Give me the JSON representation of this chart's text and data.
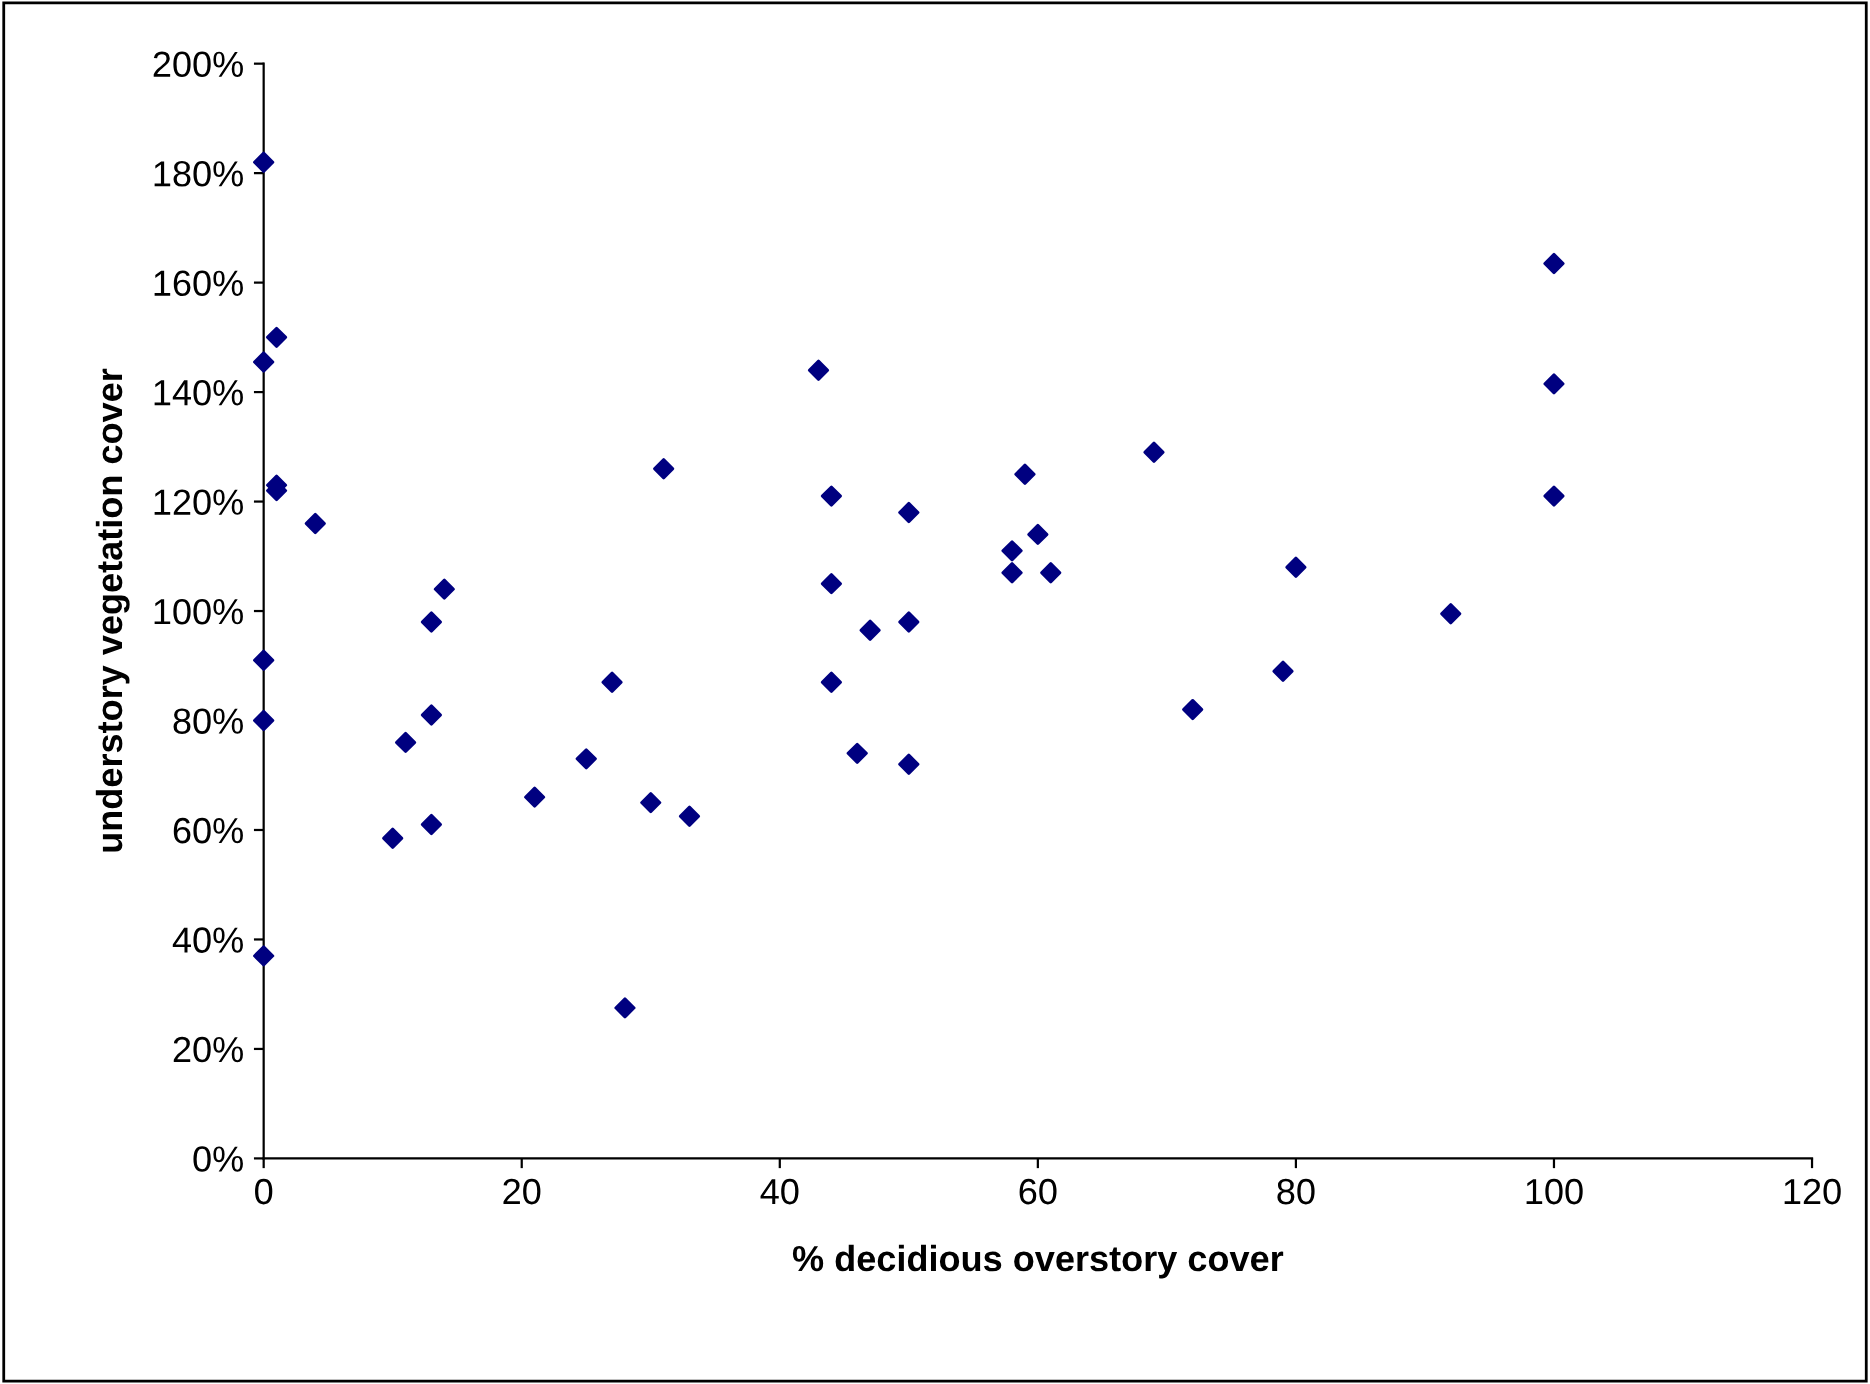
{
  "chart_data": {
    "type": "scatter",
    "xlabel": "% decidious overstory cover",
    "ylabel": "understory vegetation cover",
    "series": [
      {
        "color": "#000080",
        "x": [
          0,
          0,
          1,
          1,
          1,
          4,
          0,
          0,
          0,
          11,
          10,
          13,
          14,
          13,
          13,
          21,
          25,
          27,
          30,
          28,
          31,
          33,
          43,
          44,
          44,
          44,
          46,
          47,
          50,
          50,
          50,
          58,
          58,
          59,
          60,
          61,
          69,
          72,
          79,
          80,
          92,
          100,
          100,
          100
        ],
        "values": [
          182,
          145.5,
          150,
          123,
          122,
          116,
          91,
          80,
          37,
          76,
          58.5,
          98,
          104,
          81,
          61,
          66,
          73,
          87,
          65,
          27.5,
          126,
          62.5,
          144,
          121,
          105,
          87,
          74,
          96.5,
          118,
          98,
          72,
          111,
          107,
          125,
          114,
          107,
          129,
          82,
          89,
          108,
          99.5,
          163.5,
          141.5,
          121
        ]
      }
    ],
    "xlim": [
      0,
      120
    ],
    "xticks": [
      0,
      20,
      40,
      60,
      80,
      100,
      120
    ],
    "ylim": [
      0,
      200
    ],
    "yticks": [
      {
        "value": 0,
        "label": "0%"
      },
      {
        "value": 20,
        "label": "20%"
      },
      {
        "value": 40,
        "label": "40%"
      },
      {
        "value": 60,
        "label": "60%"
      },
      {
        "value": 80,
        "label": "80%"
      },
      {
        "value": 100,
        "label": "100%"
      },
      {
        "value": 120,
        "label": "120%"
      },
      {
        "value": 140,
        "label": "140%"
      },
      {
        "value": 160,
        "label": "160%"
      },
      {
        "value": 180,
        "label": "180%"
      },
      {
        "value": 200,
        "label": "200%"
      }
    ],
    "marker": "diamond",
    "grid": false
  }
}
